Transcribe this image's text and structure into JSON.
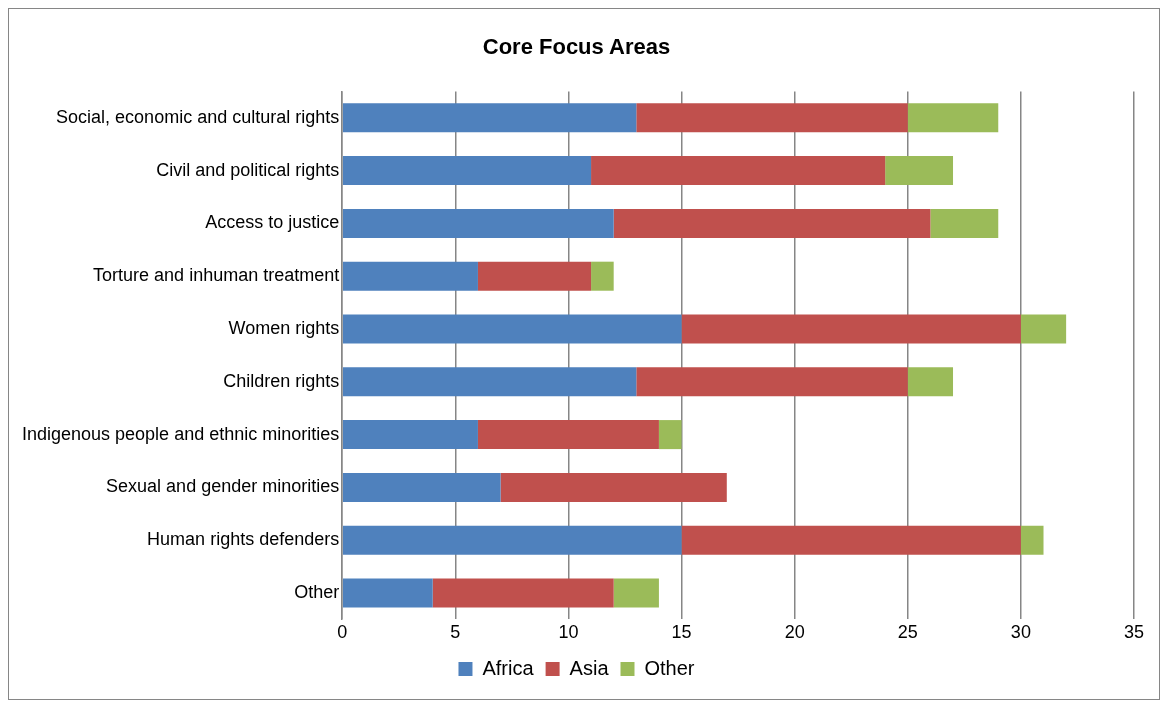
{
  "chart_data": {
    "type": "bar",
    "title": "Core Focus Areas",
    "orientation": "horizontal",
    "stacked": true,
    "categories": [
      "Social, economic and cultural rights",
      "Civil and political rights",
      "Access to justice",
      "Torture and inhuman treatment",
      "Women rights",
      "Children rights",
      "Indigenous people and ethnic minorities",
      "Sexual and gender minorities",
      "Human rights defenders",
      "Other"
    ],
    "series": [
      {
        "name": "Africa",
        "color": "#4f81bd",
        "values": [
          13,
          11,
          12,
          6,
          15,
          13,
          6,
          7,
          15,
          4
        ]
      },
      {
        "name": "Asia",
        "color": "#c0504d",
        "values": [
          12,
          13,
          14,
          5,
          15,
          12,
          8,
          10,
          15,
          8
        ]
      },
      {
        "name": "Other",
        "color": "#9bbb59",
        "values": [
          4,
          3,
          3,
          1,
          2,
          2,
          1,
          0,
          1,
          2
        ]
      }
    ],
    "xlim": [
      0,
      35
    ],
    "xticks": [
      0,
      5,
      10,
      15,
      20,
      25,
      30,
      35
    ],
    "grid": "x",
    "legend": "bottom"
  }
}
